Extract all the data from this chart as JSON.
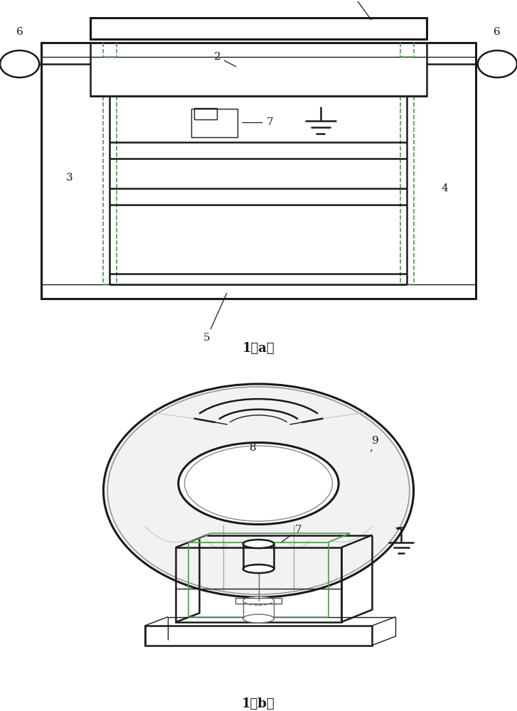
{
  "bg_color": "#ffffff",
  "lc": "#1a1a1a",
  "dc": "#4a9a4a",
  "gc": "#bbbbbb",
  "lw_main": 1.8,
  "lw_thick": 2.2,
  "lw_thin": 1.0,
  "lw_dash": 1.2,
  "caption_a": "1（a）",
  "caption_b": "1（b）",
  "font_size": 11,
  "caption_font_size": 13
}
